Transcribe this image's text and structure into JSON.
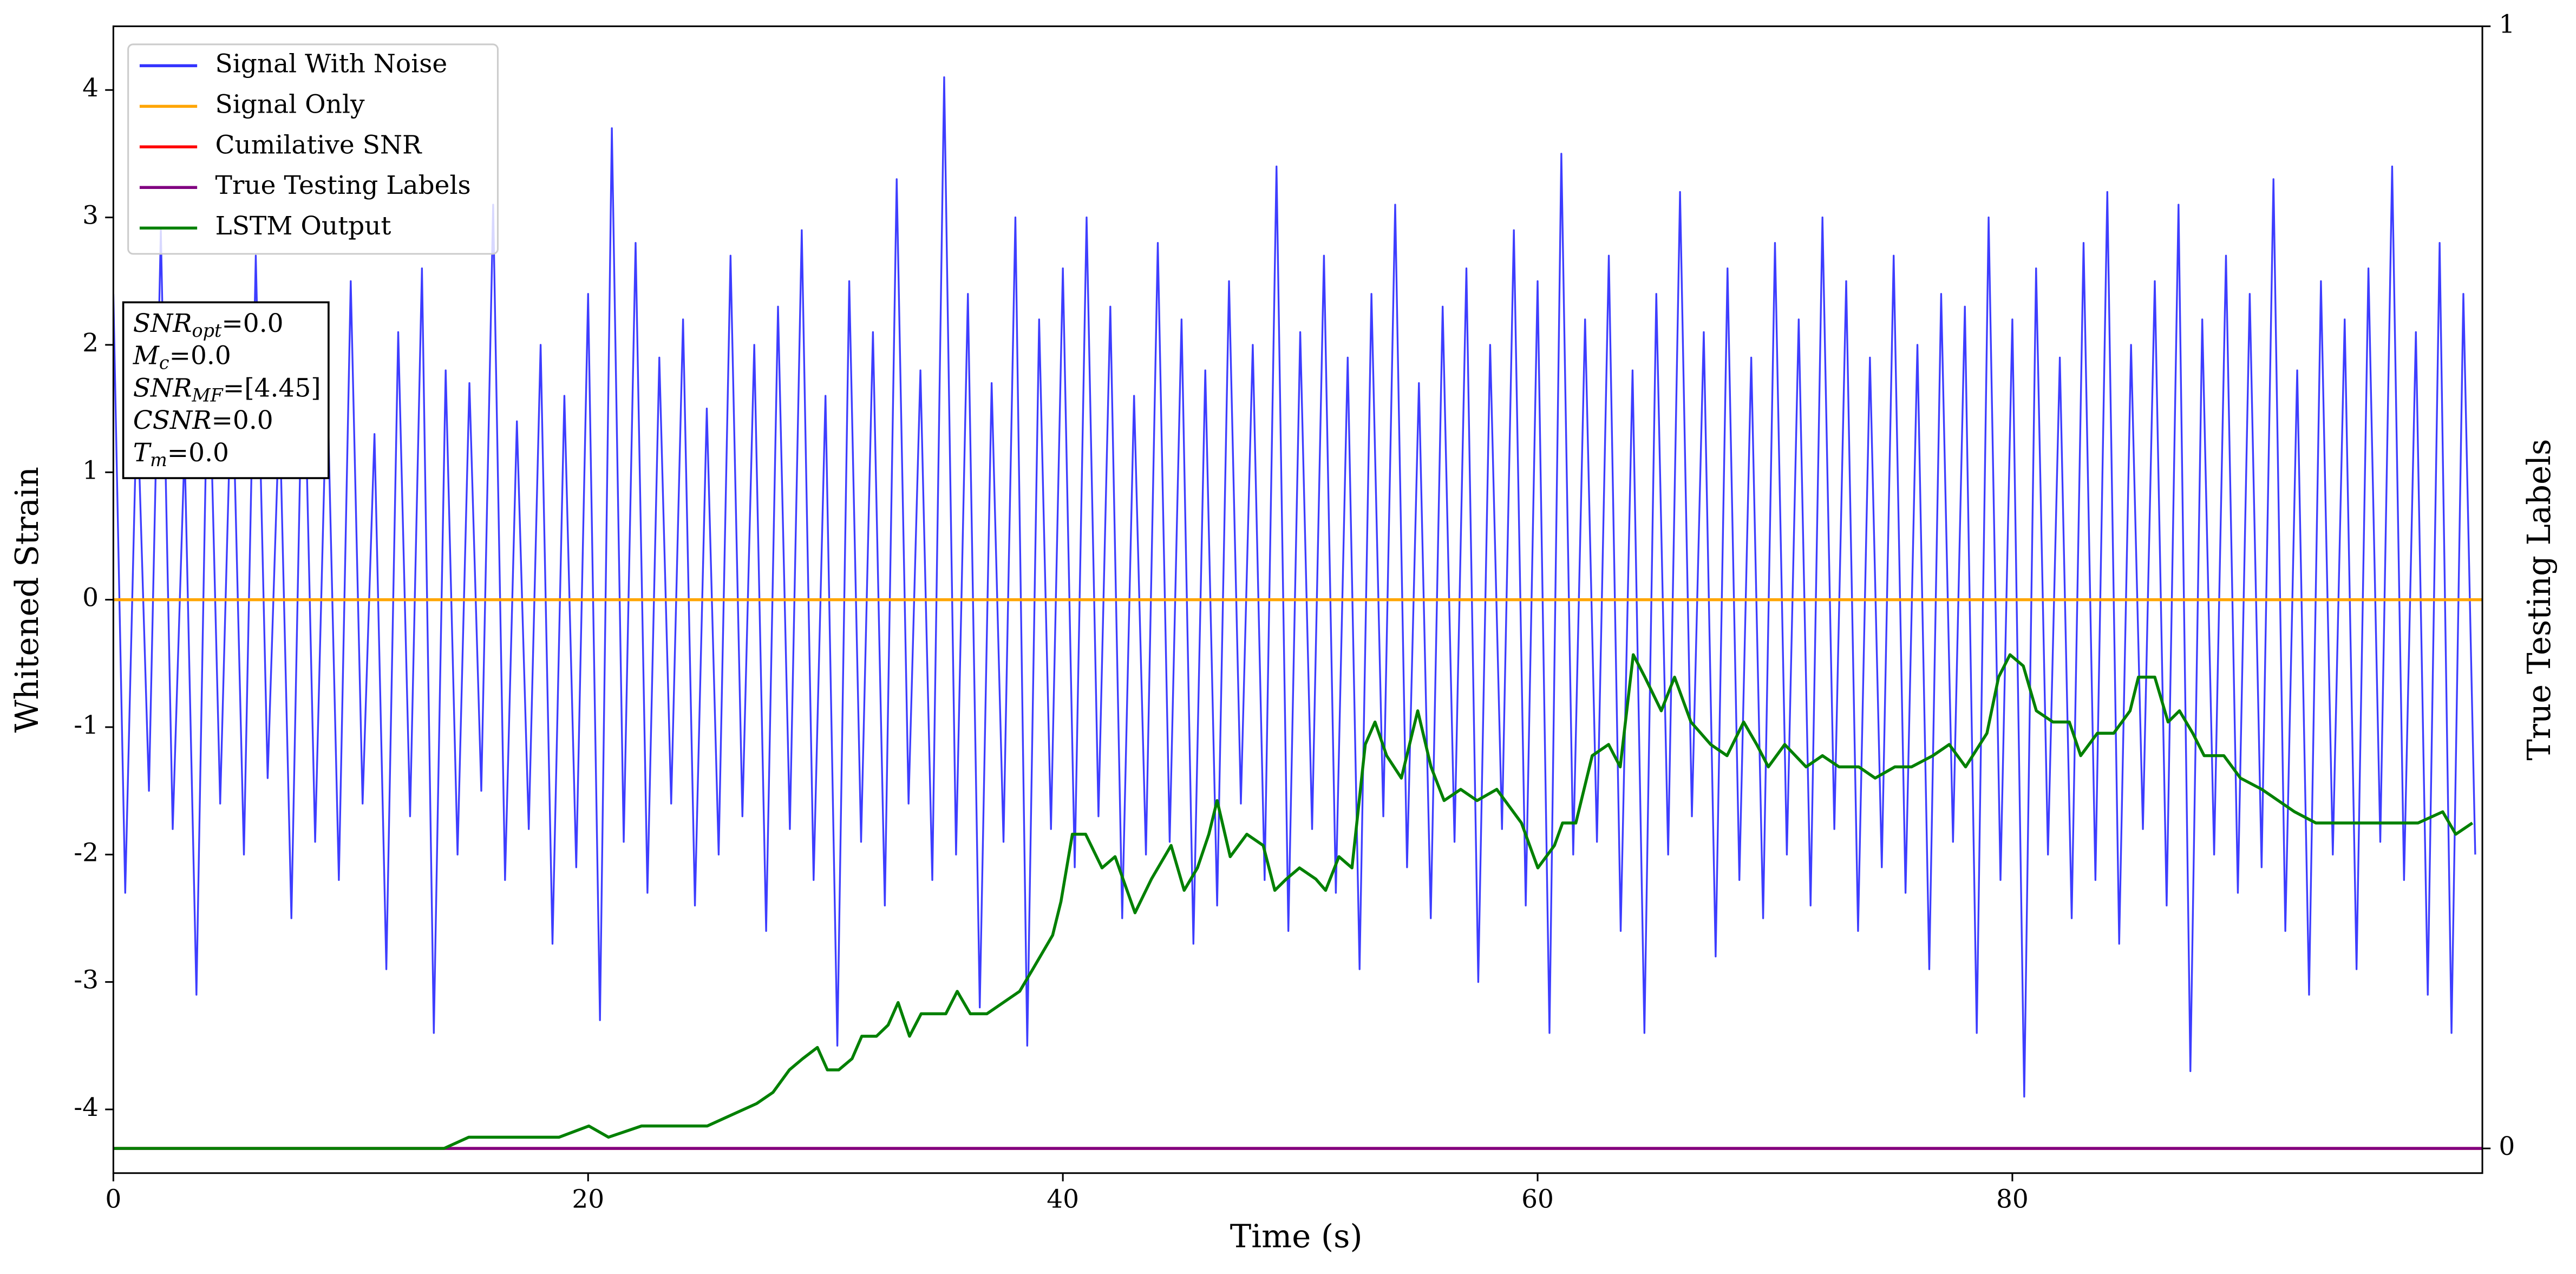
{
  "chart_data": {
    "type": "line",
    "xlabel": "Time (s)",
    "ylabel": "Whitened Strain",
    "y2label": "True Testing Labels",
    "xlim": [
      0,
      99.8
    ],
    "ylim": [
      -4.5,
      4.5
    ],
    "y2lim": [
      -0.022,
      1
    ],
    "xticks": [
      0,
      20,
      40,
      60,
      80
    ],
    "yticks": [
      -4,
      -3,
      -2,
      -1,
      0,
      1,
      2,
      3,
      4
    ],
    "y2ticks": [
      0,
      1
    ],
    "grid": false,
    "legend": "upper left",
    "annotations": [
      {
        "main": "SNR",
        "sub": "opt",
        "text": "=0.0"
      },
      {
        "main": "M",
        "sub": "c",
        "text": "=0.0"
      },
      {
        "main": "SNR",
        "sub": "MF",
        "text": "=[4.45]"
      },
      {
        "main": "CSNR",
        "text": "=0.0"
      },
      {
        "main": "T",
        "sub": "m",
        "text": "=0.0"
      }
    ],
    "series": [
      {
        "name": "Signal With Noise",
        "color": "#3333ff",
        "x": [
          0,
          0.5,
          1,
          1.5,
          2,
          2.5,
          3,
          3.5,
          4,
          4.5,
          5,
          5.5,
          6,
          6.5,
          7,
          7.5,
          8,
          8.5,
          9,
          9.5,
          10,
          10.5,
          11,
          11.5,
          12,
          12.5,
          13,
          13.5,
          14,
          14.5,
          15,
          15.5,
          16,
          16.5,
          17,
          17.5,
          18,
          18.5,
          19,
          19.5,
          20,
          20.5,
          21,
          21.5,
          22,
          22.5,
          23,
          23.5,
          24,
          24.5,
          25,
          25.5,
          26,
          26.5,
          27,
          27.5,
          28,
          28.5,
          29,
          29.5,
          30,
          30.5,
          31,
          31.5,
          32,
          32.5,
          33,
          33.5,
          34,
          34.5,
          35,
          35.5,
          36,
          36.5,
          37,
          37.5,
          38,
          38.5,
          39,
          39.5,
          40,
          40.5,
          41,
          41.5,
          42,
          42.5,
          43,
          43.5,
          44,
          44.5,
          45,
          45.5,
          46,
          46.5,
          47,
          47.5,
          48,
          48.5,
          49,
          49.5,
          50,
          50.5,
          51,
          51.5,
          52,
          52.5,
          53,
          53.5,
          54,
          54.5,
          55,
          55.5,
          56,
          56.5,
          57,
          57.5,
          58,
          58.5,
          59,
          59.5,
          60,
          60.5,
          61,
          61.5,
          62,
          62.5,
          63,
          63.5,
          64,
          64.5,
          65,
          65.5,
          66,
          66.5,
          67,
          67.5,
          68,
          68.5,
          69,
          69.5,
          70,
          70.5,
          71,
          71.5,
          72,
          72.5,
          73,
          73.5,
          74,
          74.5,
          75,
          75.5,
          76,
          76.5,
          77,
          77.5,
          78,
          78.5,
          79,
          79.5,
          80,
          80.5,
          81,
          81.5,
          82,
          82.5,
          83,
          83.5,
          84,
          84.5,
          85,
          85.5,
          86,
          86.5,
          87,
          87.5,
          88,
          88.5,
          89,
          89.5,
          90,
          90.5,
          91,
          91.5,
          92,
          92.5,
          93,
          93.5,
          94,
          94.5,
          95,
          95.5,
          96,
          96.5,
          97,
          97.5,
          98,
          98.5,
          99,
          99.5
        ],
        "values": [
          2.4,
          -2.3,
          1.6,
          -1.5,
          2.9,
          -1.8,
          1.2,
          -3.1,
          2.2,
          -1.6,
          1.9,
          -2.0,
          2.7,
          -1.4,
          1.5,
          -2.5,
          2.3,
          -1.9,
          1.8,
          -2.2,
          2.5,
          -1.6,
          1.3,
          -2.9,
          2.1,
          -1.7,
          2.6,
          -3.4,
          1.8,
          -2.0,
          1.7,
          -1.5,
          3.1,
          -2.2,
          1.4,
          -1.8,
          2.0,
          -2.7,
          1.6,
          -2.1,
          2.4,
          -3.3,
          3.7,
          -1.9,
          2.8,
          -2.3,
          1.9,
          -1.6,
          2.2,
          -2.4,
          1.5,
          -2.0,
          2.7,
          -1.7,
          2.0,
          -2.6,
          2.3,
          -1.8,
          2.9,
          -2.2,
          1.6,
          -3.5,
          2.5,
          -1.9,
          2.1,
          -2.4,
          3.3,
          -1.6,
          1.8,
          -2.2,
          4.1,
          -2.0,
          2.4,
          -3.2,
          1.7,
          -1.9,
          3.0,
          -3.5,
          2.2,
          -1.8,
          2.6,
          -2.1,
          3.0,
          -1.7,
          2.3,
          -2.5,
          1.6,
          -2.0,
          2.8,
          -1.9,
          2.2,
          -2.7,
          1.8,
          -2.4,
          2.5,
          -1.6,
          2.0,
          -2.2,
          3.4,
          -2.6,
          2.1,
          -1.8,
          2.7,
          -2.3,
          1.9,
          -2.9,
          2.4,
          -1.7,
          3.1,
          -2.1,
          1.7,
          -2.5,
          2.3,
          -1.9,
          2.6,
          -3.0,
          2.0,
          -1.8,
          2.9,
          -2.4,
          2.5,
          -3.4,
          3.5,
          -2.0,
          2.2,
          -1.9,
          2.7,
          -2.6,
          1.8,
          -3.4,
          2.4,
          -2.0,
          3.2,
          -1.7,
          2.1,
          -2.8,
          2.6,
          -2.2,
          1.9,
          -2.5,
          2.8,
          -2.0,
          2.2,
          -2.4,
          3.0,
          -1.8,
          2.5,
          -2.6,
          1.9,
          -2.1,
          2.7,
          -2.3,
          2.0,
          -2.9,
          2.4,
          -1.9,
          2.3,
          -3.4,
          3.0,
          -2.2,
          2.2,
          -3.9,
          2.6,
          -2.0,
          1.9,
          -2.5,
          2.8,
          -2.2,
          3.2,
          -2.7,
          2.0,
          -1.8,
          2.5,
          -2.4,
          3.1,
          -3.7,
          2.2,
          -2.0,
          2.7,
          -2.3,
          2.4,
          -2.1,
          3.3,
          -2.6,
          1.8,
          -3.1,
          2.5,
          -2.0,
          2.2,
          -2.9,
          2.6,
          -1.9,
          3.4,
          -2.2,
          2.1,
          -3.1,
          2.8,
          -3.4,
          2.4,
          -2.0
        ]
      },
      {
        "name": "Signal Only",
        "color": "#ffa500",
        "x": [
          0,
          99.8
        ],
        "values": [
          0,
          0
        ]
      },
      {
        "name": "Cumilative SNR",
        "color": "#ff0000",
        "axis": "y2",
        "x": [
          0,
          99.8
        ],
        "values": [
          0,
          0
        ]
      },
      {
        "name": "True Testing Labels",
        "color": "#800080",
        "axis": "y2",
        "x": [
          0,
          99.8
        ],
        "values": [
          0,
          0
        ]
      },
      {
        "name": "LSTM Output",
        "color": "#008000",
        "axis": "y2",
        "x": [
          0,
          9.08,
          13.93,
          14.97,
          16.01,
          17.39,
          18.78,
          20.03,
          20.86,
          22.25,
          23.63,
          25.02,
          26.06,
          27.1,
          27.79,
          28.48,
          29.04,
          29.66,
          30.08,
          30.56,
          31.12,
          31.53,
          32.15,
          32.64,
          33.06,
          33.54,
          34.03,
          34.44,
          35.07,
          35.55,
          36.1,
          36.8,
          37.49,
          38.18,
          38.74,
          39.57,
          39.92,
          40.4,
          40.96,
          41.65,
          42.2,
          43.04,
          43.73,
          44.56,
          45.11,
          45.67,
          46.15,
          46.5,
          47.05,
          47.75,
          48.44,
          48.93,
          49.41,
          49.97,
          50.66,
          51.07,
          51.63,
          52.18,
          52.74,
          53.15,
          53.64,
          54.26,
          54.95,
          55.51,
          56.06,
          56.76,
          57.45,
          58.28,
          59.32,
          60.01,
          60.71,
          61.05,
          61.61,
          62.3,
          62.99,
          63.48,
          64.03,
          64.52,
          65.21,
          65.77,
          66.46,
          67.29,
          67.98,
          68.68,
          69.23,
          69.72,
          70.41,
          71.31,
          72.0,
          72.7,
          73.53,
          74.22,
          75.05,
          75.75,
          76.65,
          77.34,
          78.03,
          78.93,
          79.42,
          79.9,
          80.46,
          81.01,
          81.71,
          82.4,
          82.88,
          83.58,
          84.27,
          84.96,
          85.31,
          86.0,
          86.56,
          87.04,
          87.6,
          88.08,
          88.91,
          89.61,
          90.51,
          91.2,
          91.89,
          92.79,
          93.62,
          94.46,
          95.36,
          96.26,
          97.09,
          98.13,
          98.68,
          99.38
        ],
        "values": [
          0,
          0,
          0,
          0.01,
          0.01,
          0.01,
          0.01,
          0.02,
          0.01,
          0.02,
          0.02,
          0.02,
          0.03,
          0.04,
          0.05,
          0.07,
          0.08,
          0.09,
          0.07,
          0.07,
          0.08,
          0.1,
          0.1,
          0.11,
          0.13,
          0.1,
          0.12,
          0.12,
          0.12,
          0.14,
          0.12,
          0.12,
          0.13,
          0.14,
          0.16,
          0.19,
          0.22,
          0.28,
          0.28,
          0.25,
          0.26,
          0.21,
          0.24,
          0.27,
          0.23,
          0.25,
          0.28,
          0.31,
          0.26,
          0.28,
          0.27,
          0.23,
          0.24,
          0.25,
          0.24,
          0.23,
          0.26,
          0.25,
          0.36,
          0.38,
          0.35,
          0.33,
          0.39,
          0.34,
          0.31,
          0.32,
          0.31,
          0.32,
          0.29,
          0.25,
          0.27,
          0.29,
          0.29,
          0.35,
          0.36,
          0.34,
          0.44,
          0.42,
          0.39,
          0.42,
          0.38,
          0.36,
          0.35,
          0.38,
          0.36,
          0.34,
          0.36,
          0.34,
          0.35,
          0.34,
          0.34,
          0.33,
          0.34,
          0.34,
          0.35,
          0.36,
          0.34,
          0.37,
          0.42,
          0.44,
          0.43,
          0.39,
          0.38,
          0.38,
          0.35,
          0.37,
          0.37,
          0.39,
          0.42,
          0.42,
          0.38,
          0.39,
          0.37,
          0.35,
          0.35,
          0.33,
          0.32,
          0.31,
          0.3,
          0.29,
          0.29,
          0.29,
          0.29,
          0.29,
          0.29,
          0.3,
          0.28,
          0.29
        ]
      }
    ]
  }
}
